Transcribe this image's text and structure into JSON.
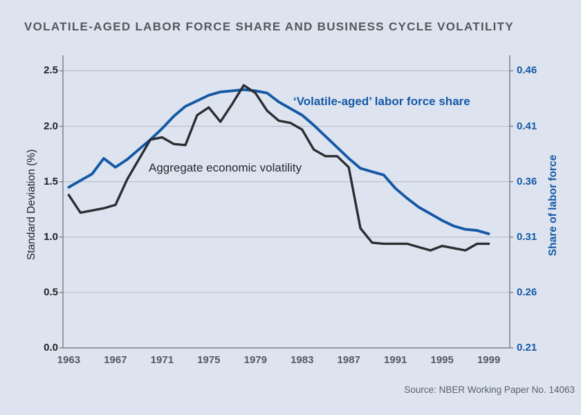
{
  "title": "VOLATILE-AGED LABOR FORCE SHARE AND BUSINESS CYCLE VOLATILITY",
  "source": "Source: NBER Working Paper No. 14063",
  "colors": {
    "background": "#dde4f0",
    "blue_accent": "#1558a5",
    "black_line": "#2b2d30",
    "grid": "#b6bdc9",
    "spine": "#7c828b",
    "title_text": "#53575d",
    "x_tick_text": "#55595f",
    "left_tick_text": "#1e2124",
    "source_text": "#59616d"
  },
  "chart_data": {
    "type": "line",
    "title": "VOLATILE-AGED LABOR FORCE SHARE AND BUSINESS CYCLE VOLATILITY",
    "grid": true,
    "legend_position": "inline-annotations",
    "x": [
      1963,
      1964,
      1965,
      1966,
      1967,
      1968,
      1969,
      1970,
      1971,
      1972,
      1973,
      1974,
      1975,
      1976,
      1977,
      1978,
      1979,
      1980,
      1981,
      1982,
      1983,
      1984,
      1985,
      1986,
      1987,
      1988,
      1989,
      1990,
      1991,
      1992,
      1993,
      1994,
      1995,
      1996,
      1997,
      1998,
      1999
    ],
    "series": [
      {
        "name": "Aggregate economic volatility",
        "axis": "left",
        "color_key": "black_line",
        "values": [
          1.38,
          1.22,
          1.24,
          1.26,
          1.29,
          1.52,
          1.7,
          1.88,
          1.9,
          1.84,
          1.83,
          2.1,
          2.17,
          2.04,
          2.2,
          2.37,
          2.3,
          2.14,
          2.05,
          2.03,
          1.97,
          1.79,
          1.73,
          1.73,
          1.63,
          1.08,
          0.95,
          0.94,
          0.94,
          0.94,
          0.91,
          0.88,
          0.92,
          0.9,
          0.88,
          0.94,
          0.94
        ]
      },
      {
        "name": "‘Volatile-aged’ labor force share",
        "axis": "right",
        "color_key": "blue_accent",
        "values": [
          0.355,
          0.361,
          0.367,
          0.381,
          0.373,
          0.38,
          0.389,
          0.398,
          0.408,
          0.419,
          0.428,
          0.433,
          0.438,
          0.441,
          0.442,
          0.443,
          0.442,
          0.44,
          0.432,
          0.426,
          0.42,
          0.411,
          0.401,
          0.391,
          0.381,
          0.372,
          0.369,
          0.366,
          0.354,
          0.345,
          0.337,
          0.331,
          0.325,
          0.32,
          0.317,
          0.316,
          0.313
        ]
      }
    ],
    "x_axis": {
      "range": [
        1962.5,
        2000.8
      ],
      "ticks": [
        1963,
        1967,
        1971,
        1975,
        1979,
        1983,
        1987,
        1991,
        1995,
        1999
      ]
    },
    "left_axis": {
      "label": "Standard Deviation (%)",
      "range": [
        0,
        2.64
      ],
      "tick_values": [
        0,
        0.5,
        1.0,
        1.5,
        2.0,
        2.5
      ],
      "tick_labels": [
        "0.0",
        "0.5",
        "1.0",
        "1.5",
        "2.0",
        "2.5"
      ]
    },
    "right_axis": {
      "label": "Share of labor force",
      "range": [
        0.21,
        0.474
      ],
      "tick_values": [
        0.21,
        0.26,
        0.31,
        0.36,
        0.41,
        0.46
      ],
      "tick_labels": [
        "0.21",
        "0.26",
        "0.31",
        "0.36",
        "0.41",
        "0.46"
      ]
    }
  }
}
